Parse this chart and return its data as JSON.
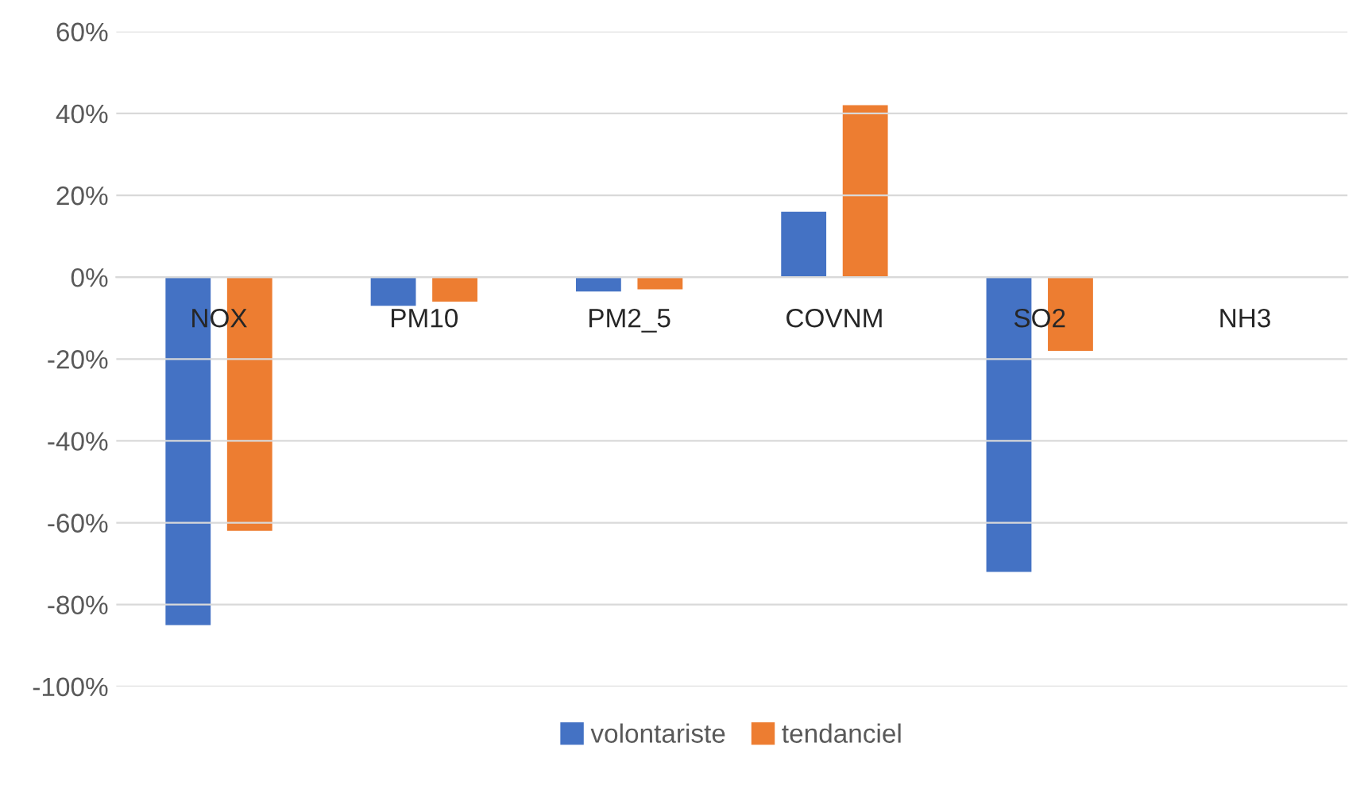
{
  "chart_data": {
    "type": "bar",
    "categories": [
      "NOX",
      "PM10",
      "PM2_5",
      "COVNM",
      "SO2",
      "NH3"
    ],
    "series": [
      {
        "name": "volontariste",
        "color": "#4472c4",
        "values": [
          -85,
          -7,
          -3.5,
          16,
          -72,
          0
        ]
      },
      {
        "name": "tendanciel",
        "color": "#ed7d31",
        "values": [
          -62,
          -6,
          -3,
          42,
          -18,
          0
        ]
      }
    ],
    "ylim": [
      -100,
      60
    ],
    "yticks": [
      {
        "value": -100,
        "label": "-100%"
      },
      {
        "value": -80,
        "label": "-80%"
      },
      {
        "value": -60,
        "label": "-60%"
      },
      {
        "value": -40,
        "label": "-40%"
      },
      {
        "value": -20,
        "label": "-20%"
      },
      {
        "value": 0,
        "label": "0%"
      },
      {
        "value": 20,
        "label": "20%"
      },
      {
        "value": 40,
        "label": "40%"
      },
      {
        "value": 60,
        "label": "60%"
      }
    ],
    "grid": "y",
    "legend": "bottom"
  }
}
